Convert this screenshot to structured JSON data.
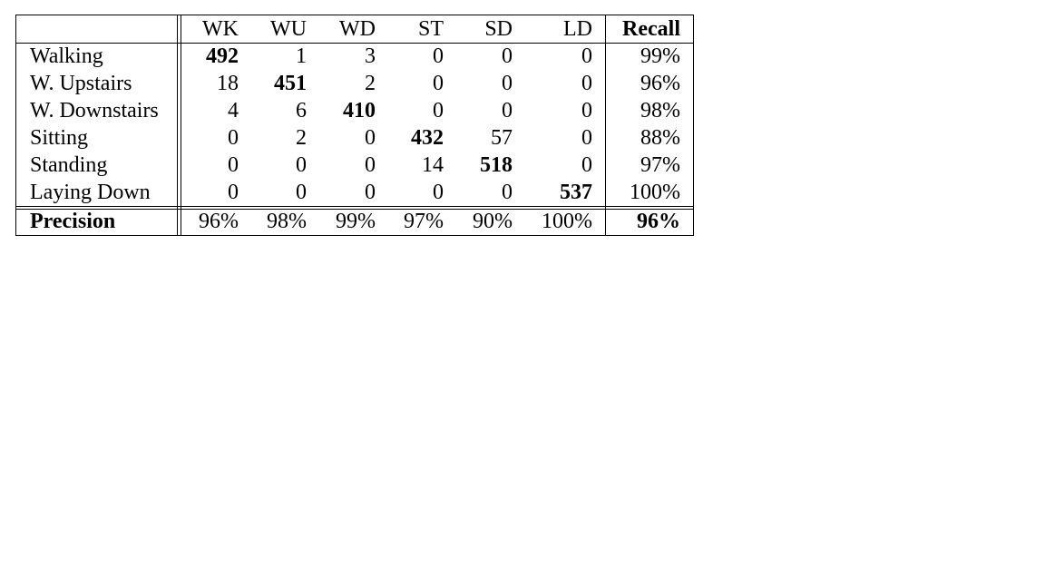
{
  "table": {
    "columns": [
      "WK",
      "WU",
      "WD",
      "ST",
      "SD",
      "LD",
      "Recall"
    ],
    "rows": [
      {
        "label": "Walking",
        "values": [
          "492",
          "1",
          "3",
          "0",
          "0",
          "0"
        ],
        "recall": "99%"
      },
      {
        "label": "W. Upstairs",
        "values": [
          "18",
          "451",
          "2",
          "0",
          "0",
          "0"
        ],
        "recall": "96%"
      },
      {
        "label": "W. Downstairs",
        "values": [
          "4",
          "6",
          "410",
          "0",
          "0",
          "0"
        ],
        "recall": "98%"
      },
      {
        "label": "Sitting",
        "values": [
          "0",
          "2",
          "0",
          "432",
          "57",
          "0"
        ],
        "recall": "88%"
      },
      {
        "label": "Standing",
        "values": [
          "0",
          "0",
          "0",
          "14",
          "518",
          "0"
        ],
        "recall": "97%"
      },
      {
        "label": "Laying Down",
        "values": [
          "0",
          "0",
          "0",
          "0",
          "0",
          "537"
        ],
        "recall": "100%"
      }
    ],
    "precision": {
      "label": "Precision",
      "values": [
        "96%",
        "98%",
        "99%",
        "97%",
        "90%",
        "100%"
      ],
      "overall": "96%"
    }
  }
}
